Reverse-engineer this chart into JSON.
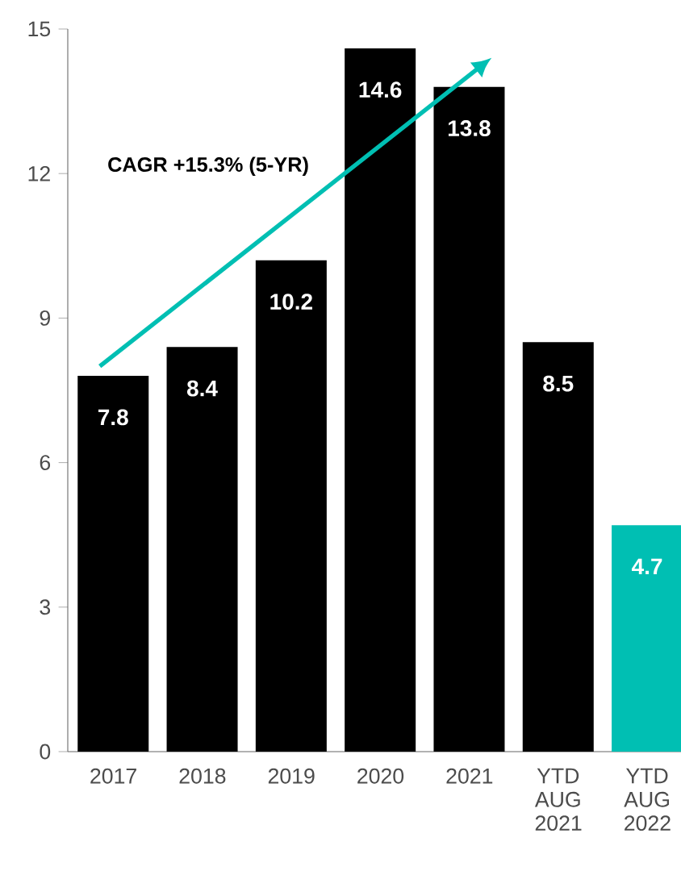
{
  "chart_data": {
    "type": "bar",
    "categories": [
      "2017",
      "2018",
      "2019",
      "2020",
      "2021",
      "YTD AUG 2021",
      "YTD AUG 2022"
    ],
    "values": [
      7.8,
      8.4,
      10.2,
      14.6,
      13.8,
      8.5,
      4.7
    ],
    "colors": [
      "#000000",
      "#000000",
      "#000000",
      "#000000",
      "#000000",
      "#000000",
      "#00bfb3"
    ],
    "ylim": [
      0,
      15
    ],
    "yticks": [
      0,
      3,
      6,
      9,
      12,
      15
    ],
    "grid": false,
    "data_labels": true,
    "annotations": [
      "CAGR +15.3% (5-YR)"
    ]
  }
}
